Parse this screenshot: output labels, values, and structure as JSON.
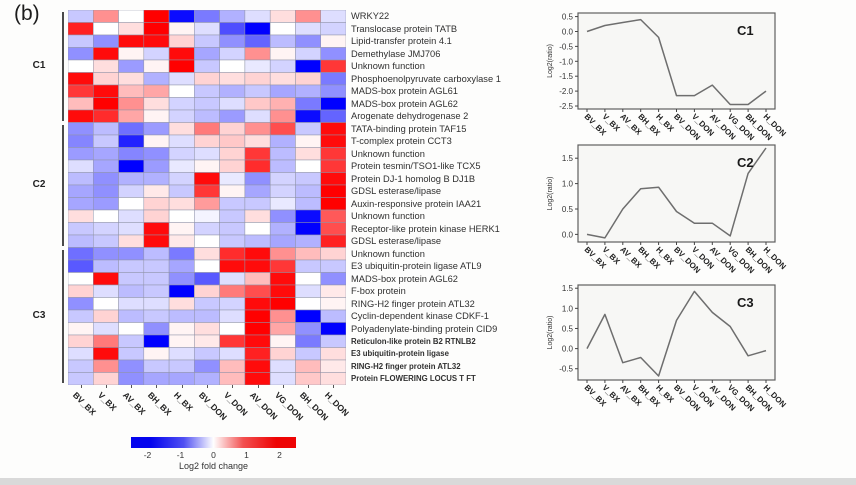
{
  "panel_label": "(b)",
  "conditions": [
    "BV_BX",
    "V_BX",
    "AV_BX",
    "BH_BX",
    "H_BX",
    "BV_DON",
    "V_DON",
    "AV_DON",
    "VG_DON",
    "BH_DON",
    "H_DON"
  ],
  "clusters": [
    {
      "label": "C1",
      "rows": 9
    },
    {
      "label": "C2",
      "rows": 10
    },
    {
      "label": "C3",
      "rows": 11
    }
  ],
  "row_labels": [
    "WRKY22",
    "Translocase protein TATB",
    "Lipid-transfer protein 4.1",
    "Demethylase JMJ706",
    "Unknown function",
    "Phosphoenolpyruvate carboxylase 1",
    "MADS-box protein AGL61",
    "MADS-box protein AGL62",
    "Arogenate dehydrogenase 2",
    "TATA-binding protein TAF15",
    "T-complex protein CCT3",
    "Unknown function",
    "Protein tesmin/TSO1-like TCX5",
    "Protein DJ-1 homolog B DJ1B",
    "GDSL esterase/lipase",
    "Auxin-responsive protein IAA21",
    "Unknown function",
    "Receptor-like protein kinase HERK1",
    "GDSL esterase/lipase",
    "Unknown function",
    "E3 ubiquitin-protein ligase ATL9",
    "MADS-box protein AGL62",
    "F-box protein",
    "RING-H2 finger protein ATL32",
    "Cyclin-dependent kinase CDKF-1",
    "Polyadenylate-binding protein CID9",
    "Reticulon-like protein B2 RTNLB2",
    "E3 ubiquitin-protein ligase",
    "RING-H2 finger protein ATL32",
    "Protein FLOWERING LOCUS T FT"
  ],
  "colorbar": {
    "ticks": [
      "-2",
      "-1",
      "0",
      "1",
      "2"
    ],
    "tick_values": [
      -2,
      -1,
      0,
      1,
      2
    ],
    "label": "Log2 fold change",
    "domain": [
      -2.5,
      2.5
    ]
  },
  "chart_data": [
    {
      "type": "heatmap",
      "title": "Heatmap of log2 fold change, 30 proteins x 11 conditions, clusters C1-C3",
      "x": [
        "BV_BX",
        "V_BX",
        "AV_BX",
        "BH_BX",
        "H_BX",
        "BV_DON",
        "V_DON",
        "AV_DON",
        "VG_DON",
        "BH_DON",
        "H_DON"
      ],
      "colorscale": {
        "min": -2.5,
        "max": 2.5,
        "low": "#0000ee",
        "mid": "#ffffff",
        "high": "#ee0000"
      },
      "values": [
        [
          -0.5,
          1.0,
          0.0,
          2.3,
          -2.2,
          -1.2,
          -0.7,
          -0.3,
          0.3,
          1.0,
          -0.3
        ],
        [
          2.0,
          0.0,
          0.3,
          2.3,
          0.1,
          -0.3,
          -1.6,
          -2.3,
          0.0,
          -0.3,
          -0.4
        ],
        [
          -0.5,
          -1.0,
          2.2,
          2.2,
          0.4,
          -0.5,
          -1.0,
          -1.4,
          -0.6,
          -1.0,
          0.1
        ],
        [
          -1.0,
          2.2,
          0.1,
          -0.4,
          2.2,
          -0.8,
          -0.4,
          1.0,
          0.1,
          -0.4,
          -1.0
        ],
        [
          0.0,
          0.3,
          -0.9,
          0.1,
          2.3,
          -0.5,
          0.0,
          -0.2,
          -0.4,
          -2.3,
          1.8
        ],
        [
          2.2,
          0.4,
          0.3,
          -0.7,
          -0.3,
          0.4,
          0.3,
          0.4,
          0.3,
          0.4,
          -1.2
        ],
        [
          1.8,
          2.2,
          0.6,
          0.8,
          0.0,
          -0.5,
          -0.7,
          -0.5,
          -0.8,
          -0.7,
          -1.0
        ],
        [
          0.6,
          2.3,
          1.0,
          0.3,
          -0.4,
          -0.5,
          -0.3,
          0.5,
          0.7,
          -1.2,
          -2.3
        ],
        [
          2.2,
          1.9,
          0.8,
          0.1,
          -0.4,
          -0.6,
          -0.9,
          -0.3,
          1.0,
          -2.2,
          -1.4
        ],
        [
          -1.0,
          -0.6,
          -1.3,
          -0.9,
          0.3,
          1.2,
          0.4,
          1.0,
          1.6,
          -0.5,
          2.2
        ],
        [
          -1.1,
          -0.5,
          -2.0,
          0.1,
          -0.3,
          0.4,
          0.5,
          0.3,
          -0.7,
          0.1,
          2.2
        ],
        [
          -0.9,
          -0.8,
          -1.1,
          -1.0,
          -0.4,
          -0.3,
          0.4,
          1.8,
          -0.6,
          0.3,
          1.8
        ],
        [
          -0.3,
          -0.8,
          -2.4,
          -0.9,
          -0.2,
          0.1,
          0.4,
          1.9,
          -0.6,
          0.0,
          1.8
        ],
        [
          -0.6,
          -1.0,
          -0.7,
          -0.7,
          -0.4,
          2.2,
          -0.2,
          -1.0,
          -0.4,
          -0.5,
          2.2
        ],
        [
          -0.8,
          -1.0,
          -0.4,
          0.2,
          -0.5,
          1.8,
          0.1,
          -0.8,
          -0.4,
          -0.6,
          2.3
        ],
        [
          -0.8,
          -0.9,
          0.0,
          0.4,
          0.3,
          0.9,
          -0.5,
          -0.5,
          -0.2,
          -0.6,
          2.3
        ],
        [
          0.3,
          0.0,
          -0.3,
          0.4,
          0.0,
          -0.1,
          -0.5,
          0.3,
          -1.0,
          -2.2,
          1.5
        ],
        [
          -0.5,
          -0.4,
          -0.3,
          2.2,
          0.1,
          -0.4,
          -0.5,
          0.0,
          -0.7,
          -2.3,
          1.6
        ],
        [
          -0.6,
          -0.5,
          0.3,
          2.2,
          0.2,
          0.0,
          -0.5,
          -0.6,
          -0.8,
          -0.7,
          2.0
        ],
        [
          -1.3,
          -1.0,
          -1.0,
          -0.6,
          -1.2,
          0.3,
          1.9,
          2.2,
          1.0,
          0.6,
          0.4
        ],
        [
          -1.5,
          -0.6,
          -0.5,
          -0.5,
          -0.8,
          0.0,
          2.2,
          2.2,
          1.8,
          -0.5,
          -0.5
        ],
        [
          0.0,
          2.2,
          -0.5,
          -0.5,
          -1.0,
          -1.5,
          -0.3,
          0.6,
          2.2,
          0.0,
          -1.0
        ],
        [
          0.4,
          -0.3,
          -0.6,
          -0.5,
          -2.3,
          0.4,
          1.2,
          1.6,
          2.2,
          -0.3,
          0.2
        ],
        [
          -1.0,
          0.0,
          -0.3,
          -0.3,
          0.3,
          -0.5,
          -0.4,
          2.2,
          2.3,
          0.0,
          0.1
        ],
        [
          -0.5,
          0.4,
          -0.6,
          -0.5,
          -0.6,
          -0.6,
          -0.3,
          2.3,
          1.0,
          -2.3,
          -0.6
        ],
        [
          0.1,
          -0.3,
          0.0,
          -1.0,
          0.1,
          0.3,
          0.0,
          2.3,
          0.8,
          -1.0,
          -2.3
        ],
        [
          0.4,
          1.2,
          -0.5,
          -2.3,
          0.1,
          0.2,
          1.8,
          2.2,
          0.1,
          -1.2,
          -0.5
        ],
        [
          -0.3,
          2.2,
          -0.5,
          0.1,
          -0.3,
          -0.5,
          -0.3,
          2.0,
          0.4,
          -0.5,
          0.3
        ],
        [
          -0.5,
          1.0,
          -1.0,
          -0.5,
          -0.5,
          -1.0,
          0.6,
          2.2,
          -0.3,
          0.6,
          0.2
        ],
        [
          -0.5,
          0.4,
          -1.0,
          -0.8,
          -0.8,
          -0.7,
          0.6,
          2.2,
          -0.3,
          0.5,
          0.3
        ]
      ]
    },
    {
      "type": "line",
      "label": "C1",
      "ylabel": "Log2(ratio)",
      "x": [
        "BV_BX",
        "V_BX",
        "AV_BX",
        "BH_BX",
        "H_BX",
        "BV_DON",
        "V_DON",
        "AV_DON",
        "VG_DON",
        "BH_DON",
        "H_DON"
      ],
      "values": [
        0.0,
        0.2,
        0.3,
        0.4,
        -0.2,
        -2.15,
        -2.15,
        -1.8,
        -2.45,
        -2.45,
        -2.0
      ],
      "yticks": [
        "0.5",
        "0.0",
        "-0.5",
        "-1.0",
        "-1.5",
        "-2.0",
        "-2.5"
      ],
      "ytick_values": [
        0.5,
        0.0,
        -0.5,
        -1.0,
        -1.5,
        -2.0,
        -2.5
      ],
      "ylim": [
        -2.6,
        0.62
      ]
    },
    {
      "type": "line",
      "label": "C2",
      "ylabel": "Log2(ratio)",
      "x": [
        "BV_BX",
        "V_BX",
        "AV_BX",
        "BH_BX",
        "H_BX",
        "BV_DON",
        "V_DON",
        "AV_DON",
        "VG_DON",
        "BH_DON",
        "H_DON"
      ],
      "values": [
        0.0,
        -0.07,
        0.5,
        0.9,
        0.93,
        0.45,
        0.22,
        0.22,
        -0.03,
        1.2,
        1.7
      ],
      "yticks": [
        "1.5",
        "1.0",
        "0.5",
        "0.0"
      ],
      "ytick_values": [
        1.5,
        1.0,
        0.5,
        0.0
      ],
      "ylim": [
        -0.15,
        1.76
      ]
    },
    {
      "type": "line",
      "label": "C3",
      "ylabel": "Log2(ratio)",
      "x": [
        "BV_BX",
        "V_BX",
        "AV_BX",
        "BH_BX",
        "H_BX",
        "BV_DON",
        "V_DON",
        "AV_DON",
        "VG_DON",
        "BH_DON",
        "H_DON"
      ],
      "values": [
        0.0,
        0.85,
        -0.35,
        -0.22,
        -0.68,
        0.7,
        1.42,
        0.9,
        0.55,
        -0.18,
        -0.05
      ],
      "yticks": [
        "1.5",
        "1.0",
        "0.5",
        "0.0",
        "-0.5"
      ],
      "ytick_values": [
        1.5,
        1.0,
        0.5,
        0.0,
        -0.5
      ],
      "ylim": [
        -0.78,
        1.58
      ]
    }
  ]
}
